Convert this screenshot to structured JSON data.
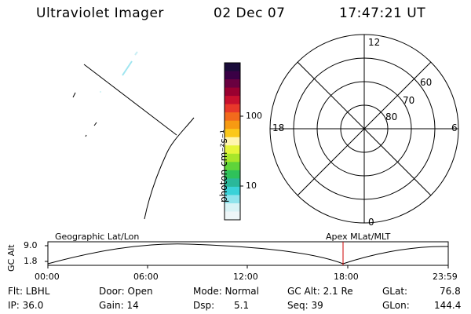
{
  "header": {
    "title": "Ultraviolet Imager",
    "date": "02 Dec 07",
    "time": "17:47:21 UT"
  },
  "colorbar": {
    "unit_label": "photon cm⁻²s⁻¹",
    "ticks": [
      "100",
      "10"
    ],
    "colors": [
      "#1a0c3a",
      "#3a0045",
      "#6a0040",
      "#9a0030",
      "#c8102e",
      "#e8382a",
      "#f26a1c",
      "#f79a12",
      "#fbc81a",
      "#fff5b0",
      "#e6f53a",
      "#a8e62a",
      "#5fd43a",
      "#2fc25a",
      "#2ab89a",
      "#3ad2d8",
      "#8fe3ec",
      "#d8f3f6",
      "#eef6f8"
    ]
  },
  "polar": {
    "mlt_labels": [
      "12",
      "18",
      "6",
      "0"
    ],
    "lat_labels": [
      "60",
      "70",
      "80"
    ]
  },
  "timeline": {
    "left_title": "Geographic Lat/Lon",
    "right_title": "Apex MLat/MLT",
    "ylabel": "GC Alt",
    "ymax": "9.0",
    "ymin": "1.8",
    "xticks": [
      "00:00",
      "06:00",
      "12:00",
      "18:00",
      "23:59"
    ],
    "current_marker_color": "#cc0000"
  },
  "footer": {
    "flt": "Flt: LBHL",
    "ip": "IP: 36.0",
    "door": "Door: Open",
    "gain": "Gain: 14",
    "mode": "Mode: Normal",
    "dsp_label": "Dsp:",
    "dsp_value": "5.1",
    "gcalt": "GC Alt: 2.1 Re",
    "seq": "Seq: 39",
    "glat_label": "GLat:",
    "glat_value": "76.8",
    "glon_label": "GLon:",
    "glon_value": "144.4"
  }
}
